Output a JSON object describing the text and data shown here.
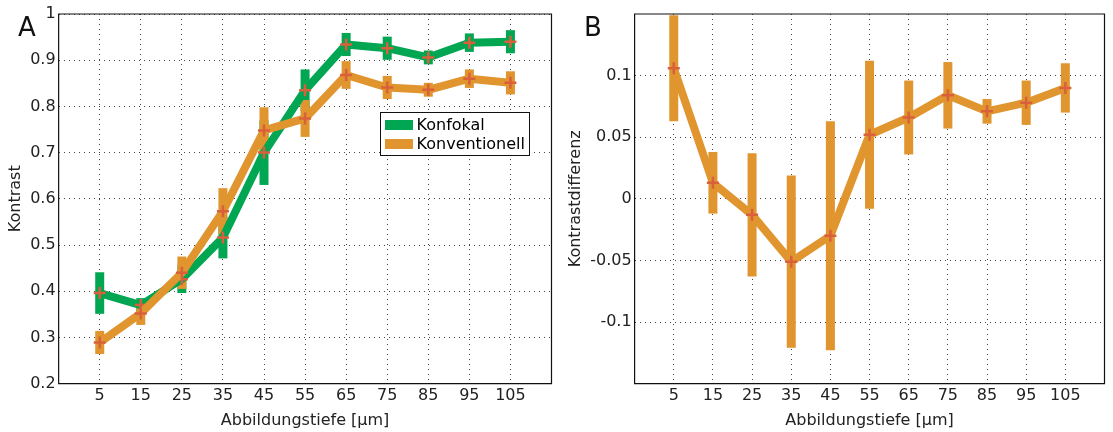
{
  "chart_data": [
    {
      "type": "line",
      "title": "A",
      "xlabel": "Abbildungstiefe [µm]",
      "ylabel": "Kontrast",
      "x": [
        5,
        15,
        25,
        35,
        45,
        55,
        65,
        75,
        85,
        95,
        105
      ],
      "xlim": [
        -5,
        115
      ],
      "xticks": [
        5,
        15,
        25,
        35,
        45,
        55,
        65,
        75,
        85,
        95,
        105
      ],
      "ylim": [
        0.2,
        1
      ],
      "yticks": [
        0.2,
        0.3,
        0.4,
        0.5,
        0.6,
        0.7,
        0.8,
        0.9,
        1
      ],
      "grid": true,
      "legend": "right",
      "marker": "cross",
      "line_style": "solid",
      "series": [
        {
          "name": "Konfokal",
          "color": "#00a651",
          "values": [
            0.396,
            0.37,
            0.426,
            0.516,
            0.7,
            0.835,
            0.934,
            0.926,
            0.906,
            0.938,
            0.94
          ],
          "errors": [
            0.045,
            0.015,
            0.03,
            0.045,
            0.07,
            0.045,
            0.025,
            0.025,
            0.015,
            0.02,
            0.025
          ]
        },
        {
          "name": "Konventionell",
          "color": "#e0952f",
          "values": [
            0.289,
            0.352,
            0.44,
            0.573,
            0.748,
            0.774,
            0.868,
            0.841,
            0.836,
            0.86,
            0.851
          ],
          "errors": [
            0.025,
            0.025,
            0.035,
            0.05,
            0.05,
            0.04,
            0.03,
            0.025,
            0.015,
            0.02,
            0.025
          ]
        }
      ]
    },
    {
      "type": "line",
      "title": "B",
      "xlabel": "Abbildungstiefe [µm]",
      "ylabel": "Kontrastdifferenz",
      "x": [
        5,
        15,
        25,
        35,
        45,
        55,
        65,
        75,
        85,
        95,
        105
      ],
      "xlim": [
        -5,
        115
      ],
      "xticks": [
        5,
        15,
        25,
        35,
        45,
        55,
        65,
        75,
        85,
        95,
        105
      ],
      "ylim": [
        -0.15,
        0.15
      ],
      "yticks": [
        -0.1,
        -0.05,
        0,
        0.05,
        0.1
      ],
      "grid": true,
      "marker": "cross",
      "line_style": "solid",
      "series": [
        {
          "color": "#e0952f",
          "values": [
            0.106,
            0.013,
            -0.013,
            -0.051,
            -0.03,
            0.052,
            0.066,
            0.084,
            0.071,
            0.078,
            0.09
          ],
          "errors": [
            0.043,
            0.025,
            0.05,
            0.07,
            0.093,
            0.06,
            0.03,
            0.027,
            0.01,
            0.018,
            0.02
          ]
        }
      ]
    }
  ]
}
